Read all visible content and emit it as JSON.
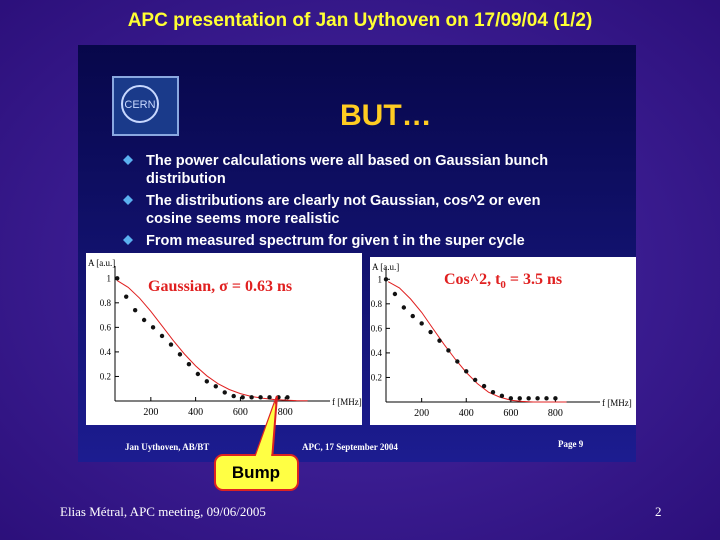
{
  "title": "APC presentation of Jan Uythoven on 17/09/04 (1/2)",
  "slide_image": {
    "logo": "CERN",
    "heading": "BUT…",
    "bullets": [
      [
        "The power calculations were all based on Gaussian bunch",
        "distribution"
      ],
      [
        "The distributions are clearly not Gaussian, cos^2 or even",
        "cosine seems more realistic"
      ],
      [
        "From measured spectrum for given t in the super cycle"
      ]
    ],
    "footer": {
      "author": "Jan Uythoven, AB/BT",
      "event": "APC, 17 September 2004",
      "page": "Page 9"
    }
  },
  "chart_data": [
    {
      "type": "scatter",
      "title": "Gaussian, σ = 0.63 ns",
      "ylabel": "A [a.u.]",
      "xlabel": "f [MHz]",
      "xlim": [
        40,
        1000
      ],
      "ylim": [
        0,
        1.1
      ],
      "xticks": [
        200,
        400,
        600,
        800
      ],
      "yticks": [
        0.2,
        0.4,
        0.6,
        0.8,
        1
      ],
      "series": [
        {
          "type": "line",
          "color": "#e02020",
          "x": [
            50,
            100,
            150,
            200,
            250,
            300,
            350,
            400,
            450,
            500,
            550,
            600,
            650,
            700,
            750,
            800,
            850,
            900
          ],
          "values": [
            0.981,
            0.925,
            0.838,
            0.731,
            0.613,
            0.494,
            0.383,
            0.286,
            0.205,
            0.141,
            0.094,
            0.06,
            0.037,
            0.022,
            0.012,
            0.007,
            0.003,
            0.002
          ]
        },
        {
          "type": "scatter",
          "color": "#111111",
          "x": [
            50,
            90,
            130,
            170,
            210,
            250,
            290,
            330,
            370,
            410,
            450,
            490,
            530,
            570,
            610,
            650,
            690,
            730,
            770,
            810
          ],
          "values": [
            1.0,
            0.85,
            0.74,
            0.66,
            0.6,
            0.53,
            0.46,
            0.38,
            0.3,
            0.22,
            0.16,
            0.12,
            0.07,
            0.04,
            0.03,
            0.03,
            0.03,
            0.03,
            0.03,
            0.03
          ]
        }
      ]
    },
    {
      "type": "scatter",
      "title": "Cos^2, t",
      "title_subscript": "0",
      "title_suffix": " = 3.5 ns",
      "ylabel": "A [a.u.]",
      "xlabel": "f [MHz]",
      "xlim": [
        40,
        1000
      ],
      "ylim": [
        0,
        1.1
      ],
      "xticks": [
        200,
        400,
        600,
        800
      ],
      "yticks": [
        0.2,
        0.4,
        0.6,
        0.8,
        1
      ],
      "series": [
        {
          "type": "line",
          "color": "#e02020",
          "x": [
            50,
            100,
            150,
            200,
            250,
            300,
            350,
            400,
            450,
            500,
            550,
            600,
            650,
            700,
            750,
            800,
            850
          ],
          "values": [
            0.98,
            0.93,
            0.84,
            0.73,
            0.6,
            0.47,
            0.35,
            0.24,
            0.15,
            0.08,
            0.04,
            0.015,
            0.005,
            0.0,
            0.0,
            0.0,
            0.0
          ]
        },
        {
          "type": "scatter",
          "color": "#111111",
          "x": [
            40,
            80,
            120,
            160,
            200,
            240,
            280,
            320,
            360,
            400,
            440,
            480,
            520,
            560,
            600,
            640,
            680,
            720,
            760,
            800
          ],
          "values": [
            1.0,
            0.88,
            0.77,
            0.7,
            0.64,
            0.57,
            0.5,
            0.42,
            0.33,
            0.25,
            0.18,
            0.13,
            0.08,
            0.05,
            0.03,
            0.03,
            0.03,
            0.03,
            0.03,
            0.03
          ]
        }
      ]
    }
  ],
  "callout": "Bump",
  "footer": {
    "text": "Elias Métral, APC meeting, 09/06/2005",
    "page": "2"
  }
}
